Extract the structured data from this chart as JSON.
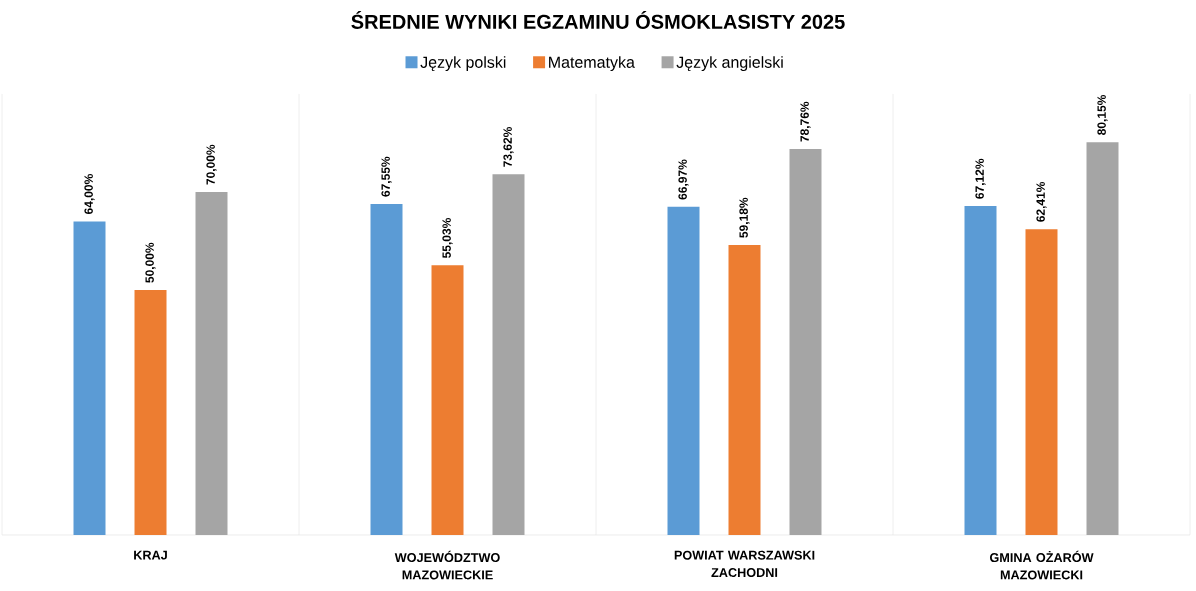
{
  "chart_data": {
    "type": "bar",
    "title": "ŚREDNIE WYNIKI EGZAMINU ÓSMOKLASISTY 2025",
    "categories": [
      "KRAJ",
      "WOJEWÓDZTWO MAZOWIECKIE",
      "POWIAT WARSZAWSKI ZACHODNI",
      "GMINA OŻARÓW MAZOWIECKI"
    ],
    "series": [
      {
        "name": "Język polski",
        "color": "#5b9bd5",
        "values": [
          64.0,
          67.55,
          66.97,
          67.12
        ],
        "value_labels": [
          "64,00%",
          "67,55%",
          "66,97%",
          "67,12%"
        ]
      },
      {
        "name": "Matematyka",
        "color": "#ed7d31",
        "values": [
          50.0,
          55.03,
          59.18,
          62.41
        ],
        "value_labels": [
          "50,00%",
          "55,03%",
          "59,18%",
          "62,41%"
        ]
      },
      {
        "name": "Język angielski",
        "color": "#a5a5a5",
        "values": [
          70.0,
          73.62,
          78.76,
          80.15
        ],
        "value_labels": [
          "70,00%",
          "73,62%",
          "78,76%",
          "80,15%"
        ]
      }
    ],
    "ylim": [
      0,
      90
    ],
    "grid": "x",
    "legend": "top"
  }
}
